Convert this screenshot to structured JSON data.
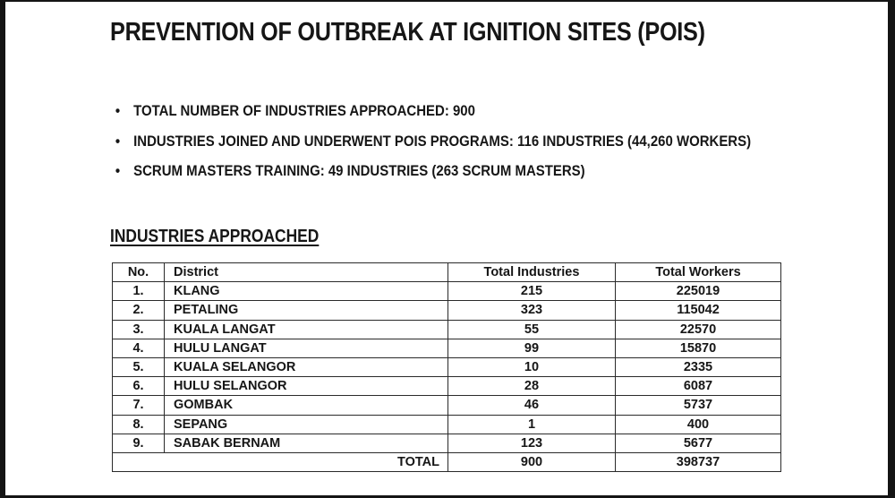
{
  "page": {
    "title": "PREVENTION OF OUTBREAK AT IGNITION SITES (POIS)"
  },
  "bullets": [
    "TOTAL NUMBER OF INDUSTRIES APPROACHED: 900",
    "INDUSTRIES JOINED AND UNDERWENT POIS PROGRAMS: 116 INDUSTRIES (44,260 WORKERS)",
    "SCRUM MASTERS TRAINING: 49 INDUSTRIES (263 SCRUM MASTERS)"
  ],
  "section": {
    "title": "INDUSTRIES APPROACHED"
  },
  "table": {
    "headers": {
      "no": "No.",
      "district": "District",
      "industries": "Total Industries",
      "workers": "Total Workers"
    },
    "rows": [
      {
        "no": "1.",
        "district": "KLANG",
        "industries": "215",
        "workers": "225019"
      },
      {
        "no": "2.",
        "district": "PETALING",
        "industries": "323",
        "workers": "115042"
      },
      {
        "no": "3.",
        "district": "KUALA LANGAT",
        "industries": "55",
        "workers": "22570"
      },
      {
        "no": "4.",
        "district": "HULU LANGAT",
        "industries": "99",
        "workers": "15870"
      },
      {
        "no": "5.",
        "district": "KUALA SELANGOR",
        "industries": "10",
        "workers": "2335"
      },
      {
        "no": "6.",
        "district": "HULU SELANGOR",
        "industries": "28",
        "workers": "6087"
      },
      {
        "no": "7.",
        "district": "GOMBAK",
        "industries": "46",
        "workers": "5737"
      },
      {
        "no": "8.",
        "district": "SEPANG",
        "industries": "1",
        "workers": "400"
      },
      {
        "no": "9.",
        "district": "SABAK BERNAM",
        "industries": "123",
        "workers": "5677"
      }
    ],
    "total": {
      "label": "TOTAL",
      "industries": "900",
      "workers": "398737"
    }
  },
  "colors": {
    "text": "#161616",
    "table_border": "#2a2a2a",
    "frame": "#141414",
    "background": "#ffffff"
  }
}
